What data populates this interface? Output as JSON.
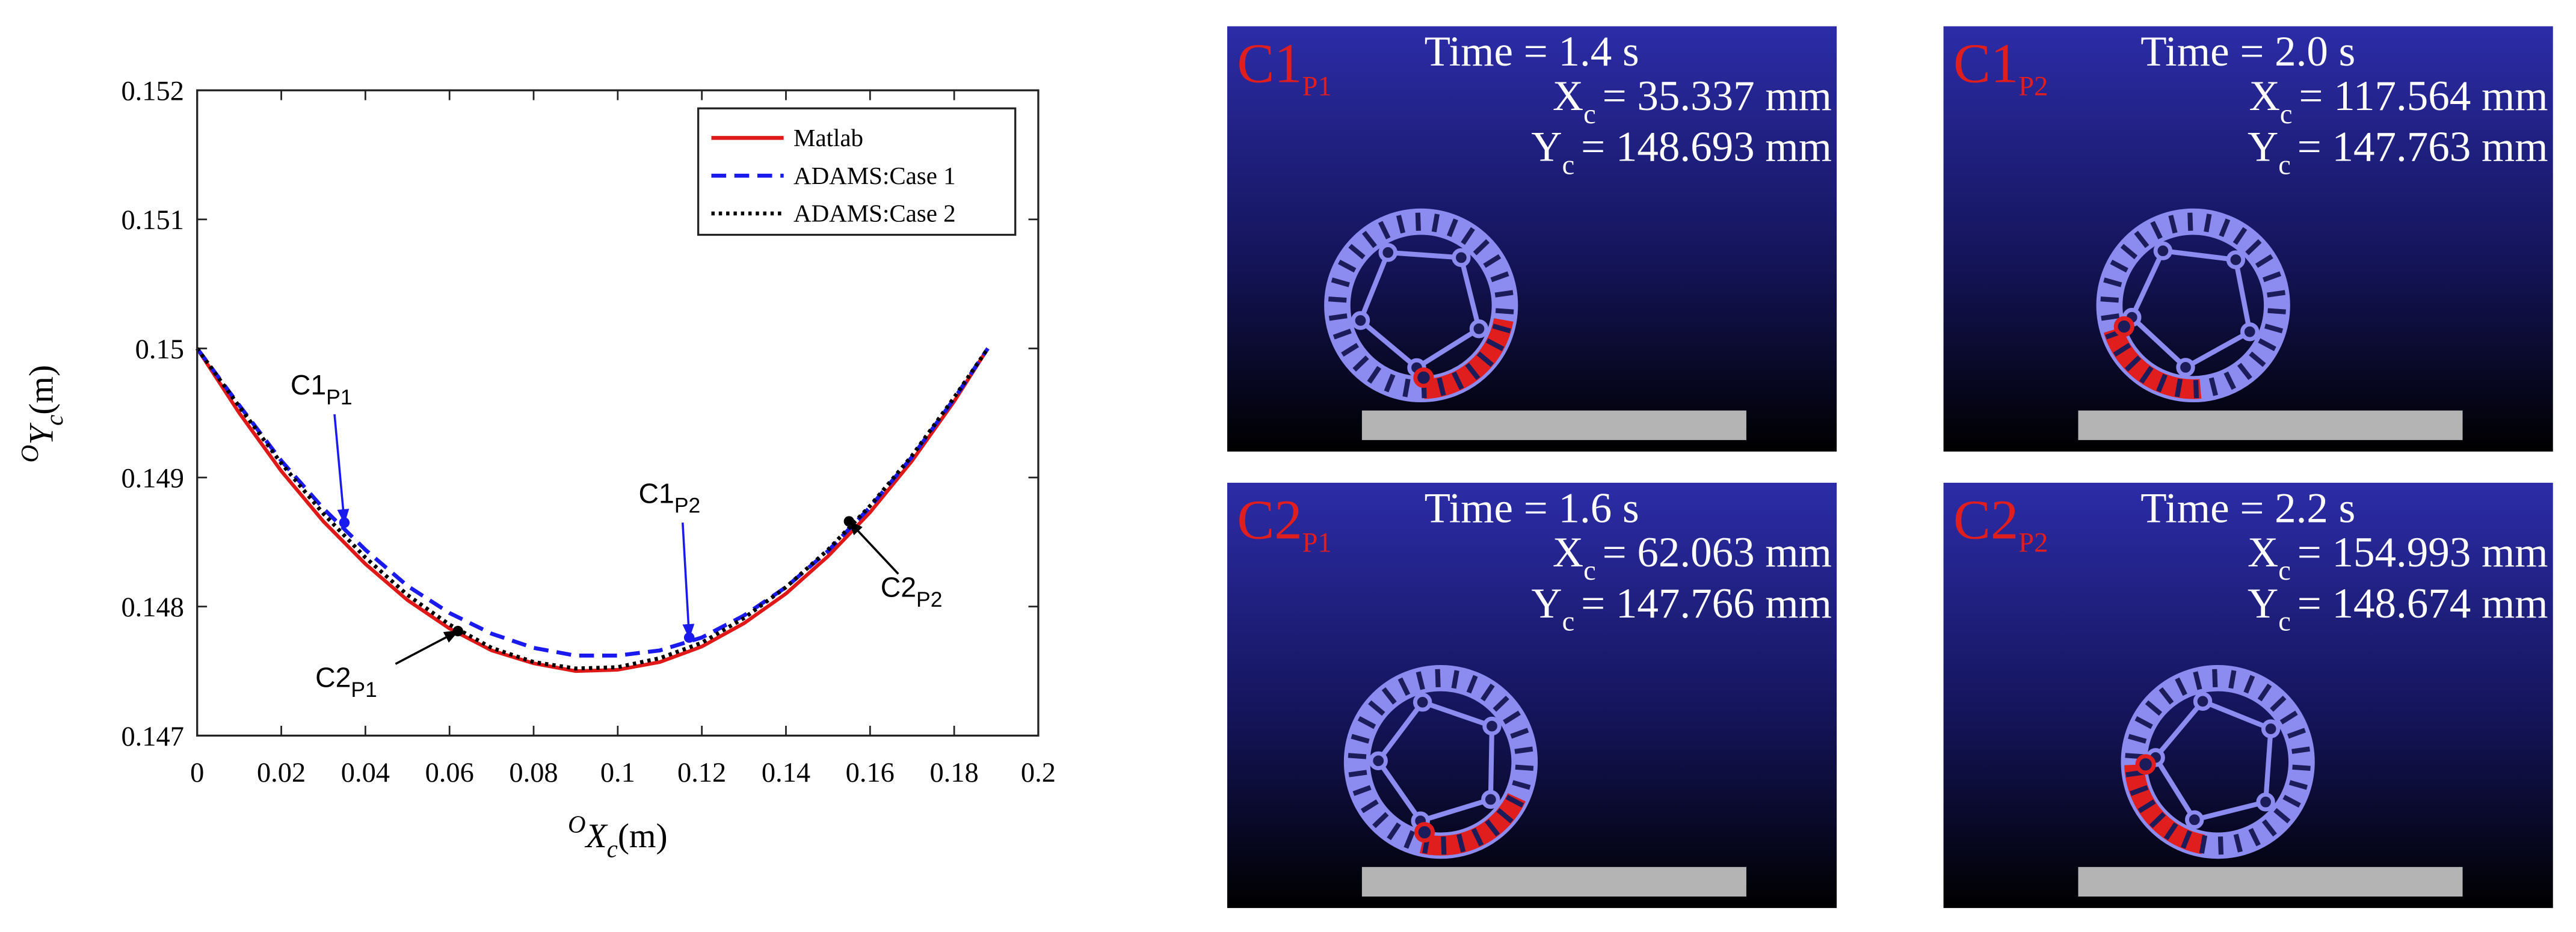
{
  "chart_data": {
    "type": "line",
    "ylabel": {
      "sup": "O",
      "main": "Y",
      "sub": "c",
      "unit": "(m)"
    },
    "xlabel": {
      "sup": "O",
      "main": "X",
      "sub": "c",
      "unit": "(m)"
    },
    "x": [
      0,
      0.01,
      0.02,
      0.03,
      0.04,
      0.05,
      0.06,
      0.07,
      0.08,
      0.09,
      0.1,
      0.11,
      0.12,
      0.13,
      0.14,
      0.15,
      0.16,
      0.17,
      0.18,
      0.188
    ],
    "series": [
      {
        "name": "Matlab",
        "color": "#e01818",
        "line_style": "solid",
        "values": [
          0.15,
          0.1495,
          0.14905,
          0.14866,
          0.14833,
          0.14805,
          0.14783,
          0.14766,
          0.14756,
          0.1475,
          0.14751,
          0.14757,
          0.14769,
          0.14787,
          0.1481,
          0.14839,
          0.14873,
          0.14913,
          0.14959,
          0.15
        ]
      },
      {
        "name": "ADAMS:Case 1",
        "color": "#1a1aee",
        "line_style": "dashed",
        "values": [
          0.15,
          0.14956,
          0.14913,
          0.14876,
          0.14844,
          0.14816,
          0.14795,
          0.14779,
          0.14768,
          0.14762,
          0.14762,
          0.14766,
          0.14776,
          0.14793,
          0.14815,
          0.14843,
          0.14877,
          0.14916,
          0.14961,
          0.15
        ]
      },
      {
        "name": "ADAMS:Case 2",
        "color": "#000000",
        "line_style": "dotted",
        "values": [
          0.15,
          0.14955,
          0.14911,
          0.14872,
          0.14838,
          0.14809,
          0.14786,
          0.14768,
          0.14757,
          0.14752,
          0.14753,
          0.1476,
          0.14772,
          0.14791,
          0.14815,
          0.14844,
          0.14878,
          0.14917,
          0.14962,
          0.15
        ]
      }
    ],
    "xlim": [
      0,
      0.2
    ],
    "xticks": [
      0,
      0.02,
      0.04,
      0.06,
      0.08,
      0.1,
      0.12,
      0.14,
      0.16,
      0.18,
      0.2
    ],
    "ylim": [
      0.147,
      0.152
    ],
    "yticks": [
      0.147,
      0.148,
      0.149,
      0.15,
      0.151,
      0.152
    ],
    "legend_position": "upper right",
    "annotations": [
      {
        "text": "C1",
        "sub": "P1",
        "x": 0.035,
        "y": 0.14865,
        "color": "#1a1aee"
      },
      {
        "text": "C1",
        "sub": "P2",
        "x": 0.117,
        "y": 0.14776,
        "color": "#1a1aee"
      },
      {
        "text": "C2",
        "sub": "P1",
        "x": 0.062,
        "y": 0.14781,
        "color": "#000000"
      },
      {
        "text": "C2",
        "sub": "P2",
        "x": 0.155,
        "y": 0.14866,
        "color": "#000000"
      }
    ]
  },
  "panels": [
    {
      "label": "C1",
      "label_sub": "P1",
      "time": "Time = 1.4 s",
      "x_name": "X",
      "x_sub": "c",
      "x_value": "= 35.337 mm",
      "y_name": "Y",
      "y_sub": "c",
      "y_value": "= 148.693 mm"
    },
    {
      "label": "C1",
      "label_sub": "P2",
      "time": "Time = 2.0 s",
      "x_name": "X",
      "x_sub": "c",
      "x_value": "= 117.564 mm",
      "y_name": "Y",
      "y_sub": "c",
      "y_value": "= 147.763 mm"
    },
    {
      "label": "C2",
      "label_sub": "P1",
      "time": "Time = 1.6 s",
      "x_name": "X",
      "x_sub": "c",
      "x_value": "= 62.063 mm",
      "y_name": "Y",
      "y_sub": "c",
      "y_value": "= 147.766 mm"
    },
    {
      "label": "C2",
      "label_sub": "P2",
      "time": "Time = 2.2 s",
      "x_name": "X",
      "x_sub": "c",
      "x_value": "= 154.993 mm",
      "y_name": "Y",
      "y_sub": "c",
      "y_value": "= 148.674 mm"
    }
  ]
}
